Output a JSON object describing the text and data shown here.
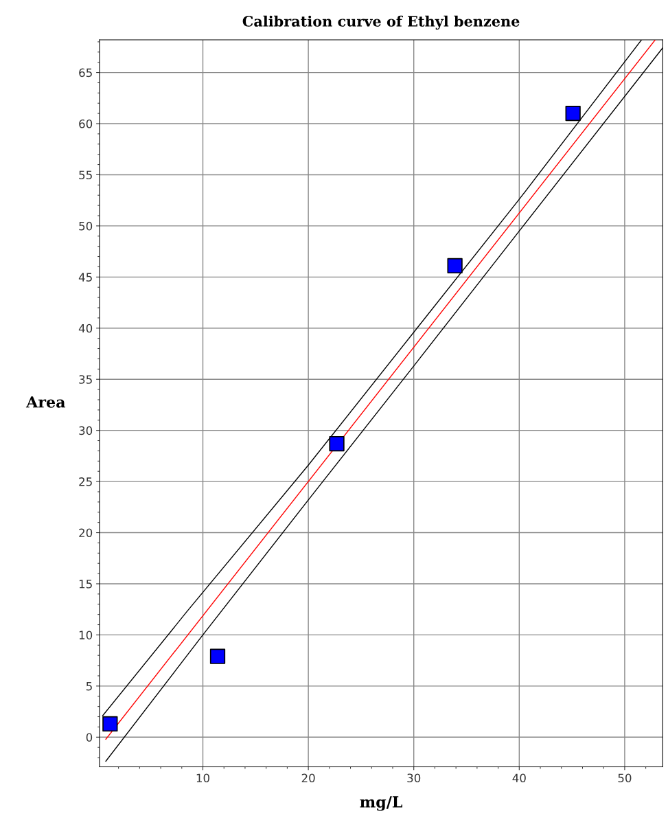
{
  "chart_data": {
    "type": "scatter",
    "title": "Calibration curve of Ethyl benzene",
    "xlabel": "mg/L",
    "ylabel": "Area",
    "xlim": [
      0.2,
      53.6
    ],
    "ylim": [
      -2.9,
      68.2
    ],
    "xticks": [
      10,
      20,
      30,
      40,
      50
    ],
    "yticks": [
      0,
      5,
      10,
      15,
      20,
      25,
      30,
      35,
      40,
      45,
      50,
      55,
      60,
      65
    ],
    "grid": true,
    "series": [
      {
        "type": "line",
        "color": "#000000",
        "line_style": "solid",
        "marker": "none",
        "x": [
          0.5,
          8.5,
          20,
          30,
          40,
          51.6
        ],
        "values": [
          2.1,
          12.3,
          26.6,
          39.6,
          52.6,
          68.2
        ]
      },
      {
        "type": "line",
        "color": "#000000",
        "line_style": "solid",
        "marker": "none",
        "x": [
          0.8,
          10,
          20,
          30,
          40,
          53.6
        ],
        "values": [
          -2.35,
          10.0,
          23.2,
          36.3,
          49.5,
          67.4
        ]
      },
      {
        "type": "line",
        "color": "#ff0000",
        "line_style": "solid",
        "marker": "none",
        "x": [
          0.8,
          52.9
        ],
        "values": [
          -0.2,
          68.2
        ]
      },
      {
        "color": "#0000ff",
        "marker": "square",
        "x": [
          1.2,
          11.4,
          22.7,
          33.9,
          45.1
        ],
        "values": [
          1.3,
          7.9,
          28.7,
          46.1,
          61.0
        ]
      }
    ]
  }
}
